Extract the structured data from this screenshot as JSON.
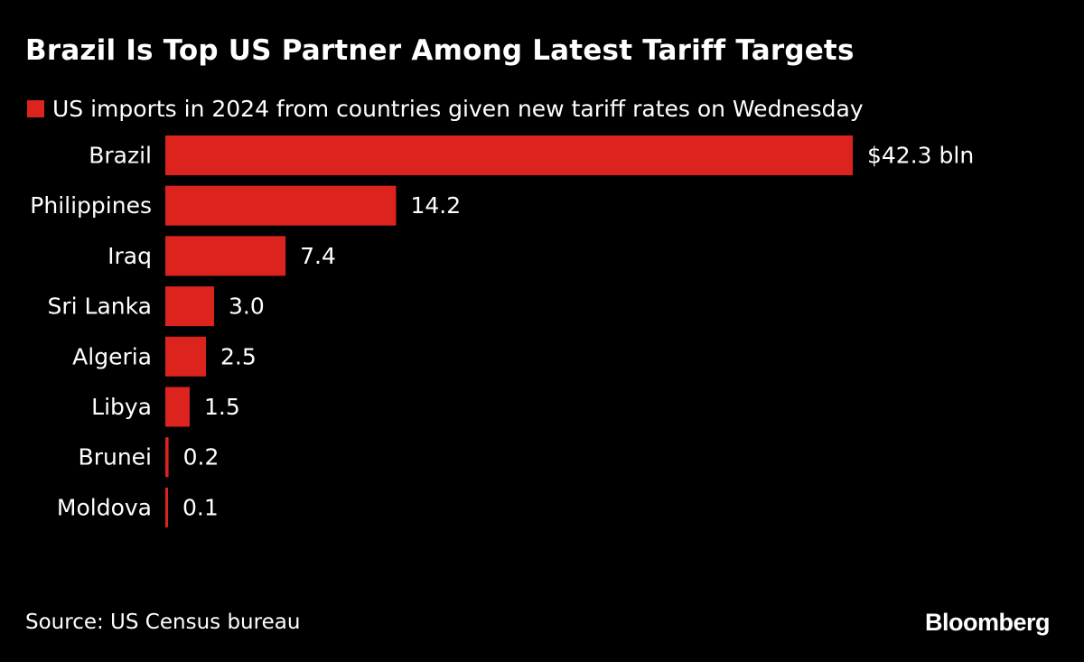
{
  "chart_data": {
    "type": "bar",
    "orientation": "horizontal",
    "title": "Brazil Is Top US Partner Among Latest Tariff Targets",
    "legend": "US imports in 2024 from countries given new tariff rates on Wednesday",
    "categories": [
      "Brazil",
      "Philippines",
      "Iraq",
      "Sri Lanka",
      "Algeria",
      "Libya",
      "Brunei",
      "Moldova"
    ],
    "values": [
      42.3,
      14.2,
      7.4,
      3.0,
      2.5,
      1.5,
      0.2,
      0.1
    ],
    "value_labels": [
      "$42.3 bln",
      "14.2",
      "7.4",
      "3.0",
      "2.5",
      "1.5",
      "0.2",
      "0.1"
    ],
    "xlim": [
      0,
      42.3
    ],
    "grid": false,
    "legend_position": "top-left",
    "bar_color": "#dc231e"
  },
  "source": "Source: US Census bureau",
  "brand": "Bloomberg",
  "colors": {
    "background": "#000000",
    "text": "#ffffff",
    "bar": "#dc231e"
  }
}
